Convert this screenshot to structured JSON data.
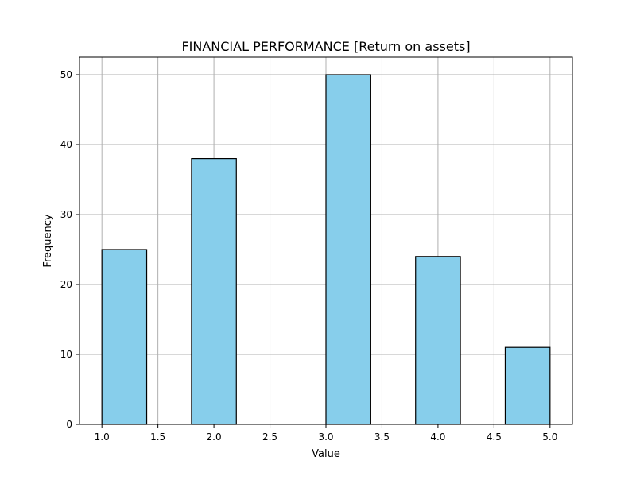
{
  "chart_data": {
    "type": "bar",
    "title": "FINANCIAL PERFORMANCE [Return on assets]",
    "xlabel": "Value",
    "ylabel": "Frequency",
    "xlim": [
      0.8,
      5.2
    ],
    "ylim": [
      0,
      52.5
    ],
    "xticks": [
      "1.0",
      "1.5",
      "2.0",
      "2.5",
      "3.0",
      "3.5",
      "4.0",
      "4.5",
      "5.0"
    ],
    "yticks": [
      "0",
      "10",
      "20",
      "30",
      "40",
      "50"
    ],
    "grid": true,
    "bar_color": "#87ceeb",
    "edge_color": "#000000",
    "bins": [
      {
        "x0": 1.0,
        "x1": 1.4,
        "value": 25
      },
      {
        "x0": 1.4,
        "x1": 1.8,
        "value": 0
      },
      {
        "x0": 1.8,
        "x1": 2.2,
        "value": 38
      },
      {
        "x0": 2.2,
        "x1": 2.6,
        "value": 0
      },
      {
        "x0": 2.6,
        "x1": 3.0,
        "value": 0
      },
      {
        "x0": 3.0,
        "x1": 3.4,
        "value": 50
      },
      {
        "x0": 3.4,
        "x1": 3.8,
        "value": 0
      },
      {
        "x0": 3.8,
        "x1": 4.2,
        "value": 24
      },
      {
        "x0": 4.2,
        "x1": 4.6,
        "value": 0
      },
      {
        "x0": 4.6,
        "x1": 5.0,
        "value": 11
      }
    ]
  }
}
